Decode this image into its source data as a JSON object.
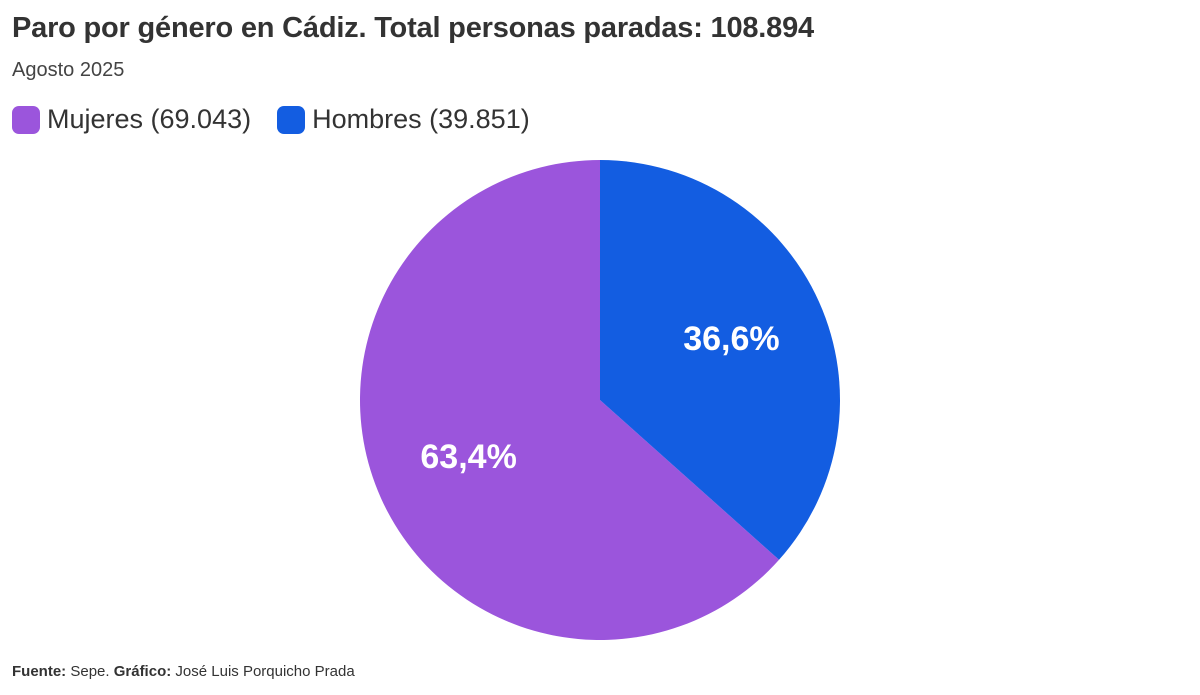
{
  "chart_data": {
    "type": "pie",
    "title": "Paro por género en Cádiz. Total personas paradas: 108.894",
    "subtitle": "Agosto 2025",
    "legend_position": "top-left",
    "slices": [
      {
        "name": "Mujeres",
        "legend_label": "Mujeres (69.043)",
        "value": 69043,
        "percent_label": "63,4%",
        "color": "#9b55dc"
      },
      {
        "name": "Hombres",
        "legend_label": "Hombres (39.851)",
        "value": 39851,
        "percent_label": "36,6%",
        "color": "#135de1"
      }
    ]
  },
  "footer": {
    "source_label": "Fuente:",
    "source_value": "Sepe.",
    "credit_label": "Gráfico:",
    "credit_value": "José Luis Porquicho Prada"
  }
}
